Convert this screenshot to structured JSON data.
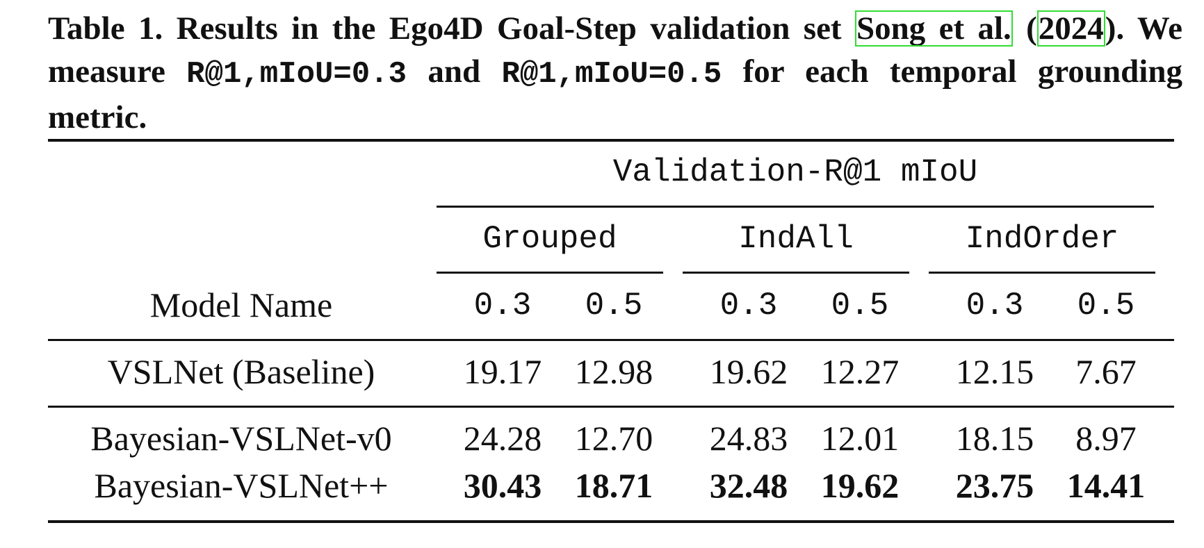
{
  "caption": {
    "part1": "Table 1. Results in the Ego4D Goal-Step validation set ",
    "cite_author": "Song et al.",
    "cite_open": " (",
    "cite_year": "2024",
    "cite_close": ").",
    "part2": " We measure ",
    "metric1": "R@1,mIoU=0.3",
    "and": " and ",
    "metric2": "R@1,mIoU=0.5",
    "part3": " for each temporal grounding metric."
  },
  "table": {
    "super_header": "Validation-R@1 mIoU",
    "groups": [
      "Grouped",
      "IndAll",
      "IndOrder"
    ],
    "model_header": "Model Name",
    "thresholds": [
      "0.3",
      "0.5",
      "0.3",
      "0.5",
      "0.3",
      "0.5"
    ],
    "rows": [
      {
        "name": "VSLNet (Baseline)",
        "values": [
          "19.17",
          "12.98",
          "19.62",
          "12.27",
          "12.15",
          "7.67"
        ],
        "bold": false
      },
      {
        "name": "Bayesian-VSLNet-v0",
        "values": [
          "24.28",
          "12.70",
          "24.83",
          "12.01",
          "18.15",
          "8.97"
        ],
        "bold": false
      },
      {
        "name": "Bayesian-VSLNet++",
        "values": [
          "30.43",
          "18.71",
          "32.48",
          "19.62",
          "23.75",
          "14.41"
        ],
        "bold": true
      }
    ]
  }
}
